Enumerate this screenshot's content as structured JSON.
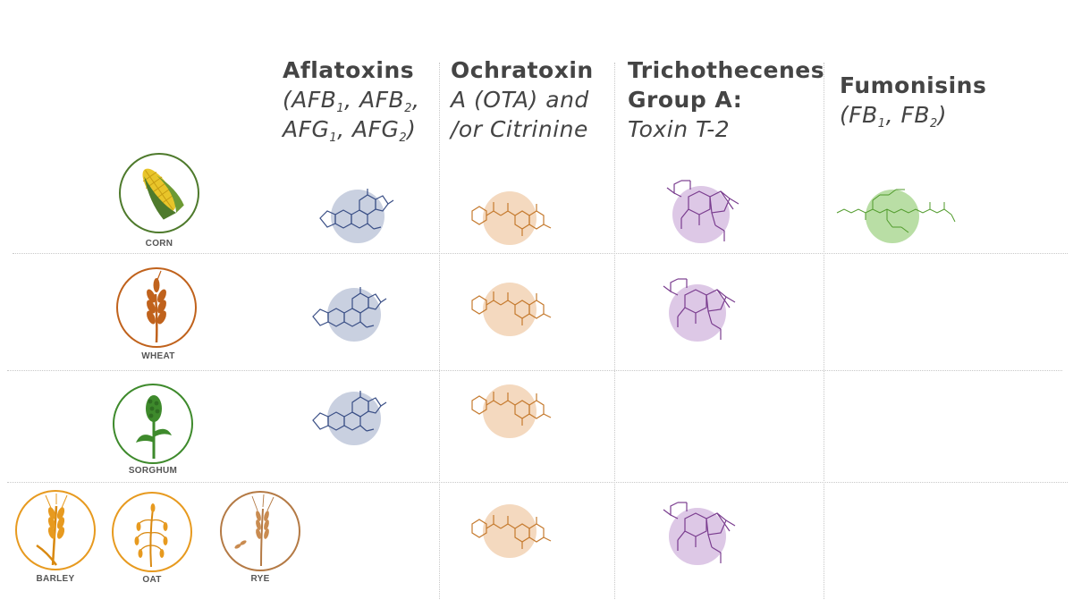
{
  "columns": [
    {
      "bold": "Aflatoxins",
      "italic_lines": [
        "(AFB",
        "1",
        ", AFB",
        "2",
        ",",
        "AFG",
        "1",
        ", AFG",
        "2",
        ")"
      ]
    },
    {
      "bold": "Ochratoxin",
      "italic_lines": [
        "A (OTA) and",
        "/or Citrinine"
      ]
    },
    {
      "bold_lines": [
        "Trichothecenes",
        "Group A:"
      ],
      "italic_lines": [
        "Toxin T-2"
      ]
    },
    {
      "bold": "Fumonisins",
      "italic_lines": [
        "(FB",
        "1",
        ", FB",
        "2",
        ")"
      ]
    }
  ],
  "crops": [
    {
      "label": "CORN",
      "color": "#4e7a2c",
      "icon": "corn-icon"
    },
    {
      "label": "WHEAT",
      "color": "#c0621c",
      "icon": "wheat-icon"
    },
    {
      "label": "SORGHUM",
      "color": "#3e8a2c",
      "icon": "sorghum-icon"
    },
    {
      "label": "BARLEY",
      "color": "#e79a1f",
      "icon": "barley-icon"
    },
    {
      "label": "OAT",
      "color": "#e79a1f",
      "icon": "oat-icon"
    },
    {
      "label": "RYE",
      "color": "#b47a45",
      "icon": "rye-icon"
    }
  ],
  "toxin_colors": {
    "aflatoxin": {
      "line": "#3a4f86",
      "blob": "#c9d0e0"
    },
    "ochratoxin": {
      "line": "#c57a2e",
      "blob": "#f4d9bf"
    },
    "trichothecene": {
      "line": "#7a3d8f",
      "blob": "#ddc8e6"
    },
    "fumonisin": {
      "line": "#4f9a2a",
      "blob": "#b9dea5"
    }
  },
  "presence": {
    "corn": [
      "aflatoxin",
      "ochratoxin",
      "trichothecene",
      "fumonisin"
    ],
    "wheat": [
      "aflatoxin",
      "ochratoxin",
      "trichothecene"
    ],
    "sorghum": [
      "aflatoxin",
      "ochratoxin"
    ],
    "barley_oat_rye": [
      "ochratoxin",
      "trichothecene"
    ]
  }
}
